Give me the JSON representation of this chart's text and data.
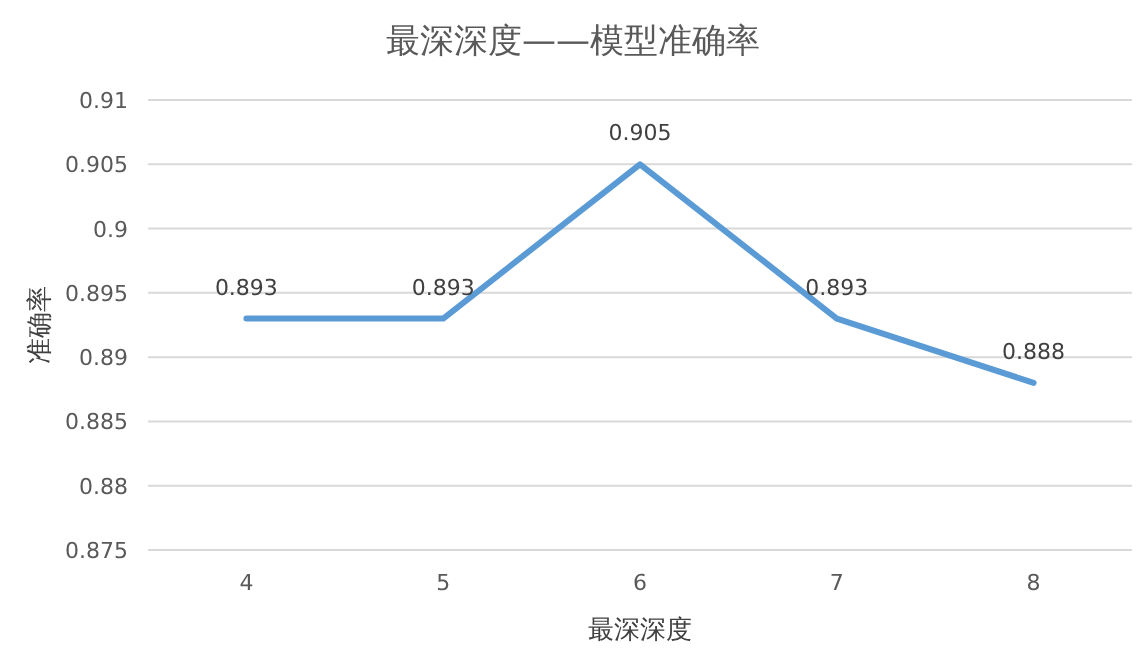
{
  "chart_data": {
    "type": "line",
    "title": "最深深度——模型准确率",
    "xlabel": "最深深度",
    "ylabel": "准确率",
    "categories": [
      "4",
      "5",
      "6",
      "7",
      "8"
    ],
    "series": [
      {
        "color": "#5b9bd5",
        "values": [
          0.893,
          0.893,
          0.905,
          0.893,
          0.888
        ]
      }
    ],
    "ylim": [
      0.875,
      0.91
    ],
    "yticks": [
      0.875,
      0.88,
      0.885,
      0.89,
      0.895,
      0.9,
      0.905,
      0.91
    ],
    "grid": "y",
    "data_labels": true,
    "marker": "none",
    "line_style": "solid"
  }
}
